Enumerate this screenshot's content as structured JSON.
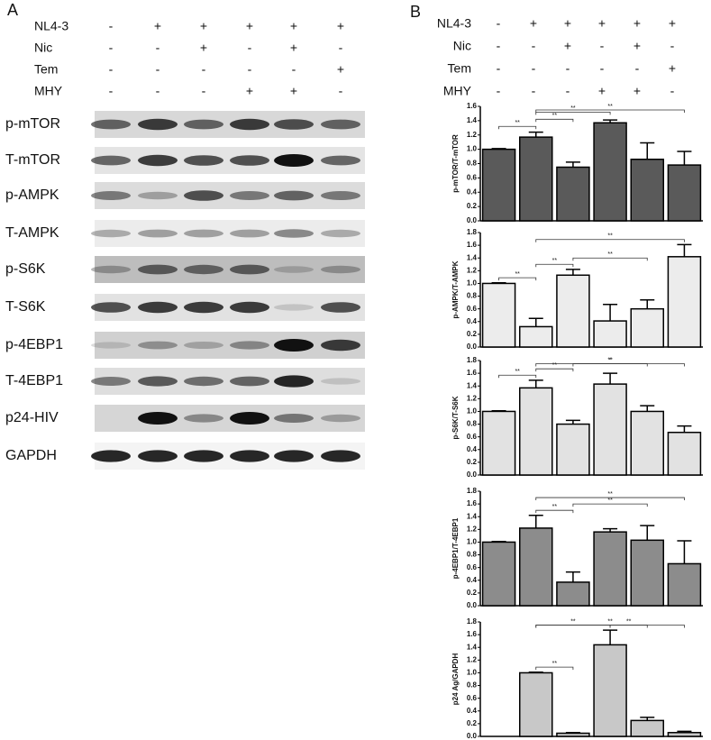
{
  "panel_a": {
    "label": "A",
    "treatments": [
      {
        "name": "NL4-3",
        "signs": [
          "-",
          "+",
          "+",
          "+",
          "+",
          "+"
        ]
      },
      {
        "name": "Nic",
        "signs": [
          "-",
          "-",
          "+",
          "-",
          "+",
          "-"
        ]
      },
      {
        "name": "Tem",
        "signs": [
          "-",
          "-",
          "-",
          "-",
          "-",
          "+"
        ]
      },
      {
        "name": "MHY",
        "signs": [
          "-",
          "-",
          "-",
          "+",
          "+",
          "-"
        ]
      }
    ],
    "blots": [
      "p-mTOR",
      "T-mTOR",
      "p-AMPK",
      "T-AMPK",
      "p-S6K",
      "T-S6K",
      "p-4EBP1",
      "T-4EBP1",
      "p24-HIV",
      "GAPDH"
    ]
  },
  "panel_b": {
    "label": "B",
    "treatments": [
      {
        "name": "NL4-3",
        "signs": [
          "-",
          "+",
          "+",
          "+",
          "+",
          "+"
        ]
      },
      {
        "name": "Nic",
        "signs": [
          "-",
          "-",
          "+",
          "-",
          "+",
          "-"
        ]
      },
      {
        "name": "Tem",
        "signs": [
          "-",
          "-",
          "-",
          "-",
          "-",
          "+"
        ]
      },
      {
        "name": "MHY",
        "signs": [
          "-",
          "-",
          "-",
          "+",
          "+",
          "-"
        ]
      }
    ]
  },
  "chart_data": [
    {
      "type": "bar",
      "y_label": "p-mTOR/T-mTOR",
      "color": "#5a5a5a",
      "values": [
        1.0,
        1.17,
        0.75,
        1.37,
        0.86,
        0.78
      ],
      "errors": [
        0.01,
        0.07,
        0.07,
        0.04,
        0.23,
        0.19
      ],
      "ylim": [
        0,
        1.6
      ],
      "yticks": [
        {
          "value": 0,
          "label": "0.0"
        },
        0.2,
        0.4,
        0.6,
        0.8,
        {
          "value": 1,
          "label": "1.0"
        },
        1.2,
        1.4,
        1.6
      ],
      "significance": [
        {
          "pair": [
            0,
            1
          ],
          "label": "**"
        },
        {
          "pair": [
            1,
            2
          ],
          "label": "**"
        },
        {
          "pair": [
            1,
            3
          ],
          "label": "**"
        },
        {
          "pair": [
            1,
            5
          ],
          "label": "**"
        }
      ]
    },
    {
      "type": "bar",
      "y_label": "p-AMPK/T-AMPK",
      "color": "#ececec",
      "values": [
        1.0,
        0.32,
        1.13,
        0.41,
        0.6,
        1.42
      ],
      "errors": [
        0.01,
        0.13,
        0.09,
        0.26,
        0.14,
        0.19
      ],
      "ylim": [
        0,
        1.8
      ],
      "yticks": [
        {
          "value": 0,
          "label": "0.0"
        },
        0.2,
        0.4,
        0.6,
        0.8,
        {
          "value": 1,
          "label": "1.0"
        },
        1.2,
        1.4,
        1.6,
        1.8
      ],
      "significance": [
        {
          "pair": [
            0,
            1
          ],
          "label": "**"
        },
        {
          "pair": [
            1,
            2
          ],
          "label": "**"
        },
        {
          "pair": [
            2,
            4
          ],
          "label": "**"
        },
        {
          "pair": [
            1,
            5
          ],
          "label": "**"
        }
      ]
    },
    {
      "type": "bar",
      "y_label": "p-S6K/T-S6K",
      "color": "#e2e2e2",
      "values": [
        1.0,
        1.37,
        0.8,
        1.43,
        1.0,
        0.67
      ],
      "errors": [
        0.01,
        0.12,
        0.06,
        0.17,
        0.09,
        0.1
      ],
      "ylim": [
        0,
        1.8
      ],
      "yticks": [
        {
          "value": 0,
          "label": "0.0"
        },
        0.2,
        0.4,
        0.6,
        0.8,
        {
          "value": 1,
          "label": "1.0"
        },
        1.2,
        1.4,
        1.6,
        1.8
      ],
      "significance": [
        {
          "pair": [
            0,
            1
          ],
          "label": "**"
        },
        {
          "pair": [
            1,
            2
          ],
          "label": "**"
        },
        {
          "pair": [
            2,
            4
          ],
          "label": "*"
        },
        {
          "pair": [
            1,
            5
          ],
          "label": "**"
        }
      ]
    },
    {
      "type": "bar",
      "y_label": "p-4EBP1/T-4EBP1",
      "color": "#8c8c8c",
      "values": [
        1.0,
        1.22,
        0.37,
        1.16,
        1.03,
        0.66
      ],
      "errors": [
        0.01,
        0.2,
        0.16,
        0.05,
        0.23,
        0.36
      ],
      "ylim": [
        0,
        1.8
      ],
      "yticks": [
        {
          "value": 0,
          "label": "0.0"
        },
        0.2,
        0.4,
        0.6,
        0.8,
        {
          "value": 1,
          "label": "1.0"
        },
        1.2,
        1.4,
        1.6,
        1.8
      ],
      "significance": [
        {
          "pair": [
            1,
            2
          ],
          "label": "**"
        },
        {
          "pair": [
            2,
            4
          ],
          "label": "**"
        },
        {
          "pair": [
            1,
            5
          ],
          "label": "**"
        }
      ]
    },
    {
      "type": "bar",
      "y_label": "p24 Ag/GAPDH",
      "color": "#c8c8c8",
      "values": [
        null,
        1.0,
        0.05,
        1.44,
        0.25,
        0.06
      ],
      "errors": [
        null,
        0.01,
        0.01,
        0.23,
        0.05,
        0.02
      ],
      "ylim": [
        0,
        1.8
      ],
      "yticks": [
        {
          "value": 0,
          "label": "0.0"
        },
        0.2,
        0.4,
        0.6,
        0.8,
        {
          "value": 1,
          "label": "1.0"
        },
        1.2,
        1.4,
        1.6,
        1.8
      ],
      "significance": [
        {
          "pair": [
            1,
            2
          ],
          "label": "**"
        },
        {
          "pair": [
            3,
            4
          ],
          "label": "**"
        },
        {
          "pair": [
            1,
            3
          ],
          "label": "**"
        },
        {
          "pair": [
            1,
            5
          ],
          "label": "**"
        }
      ]
    }
  ]
}
